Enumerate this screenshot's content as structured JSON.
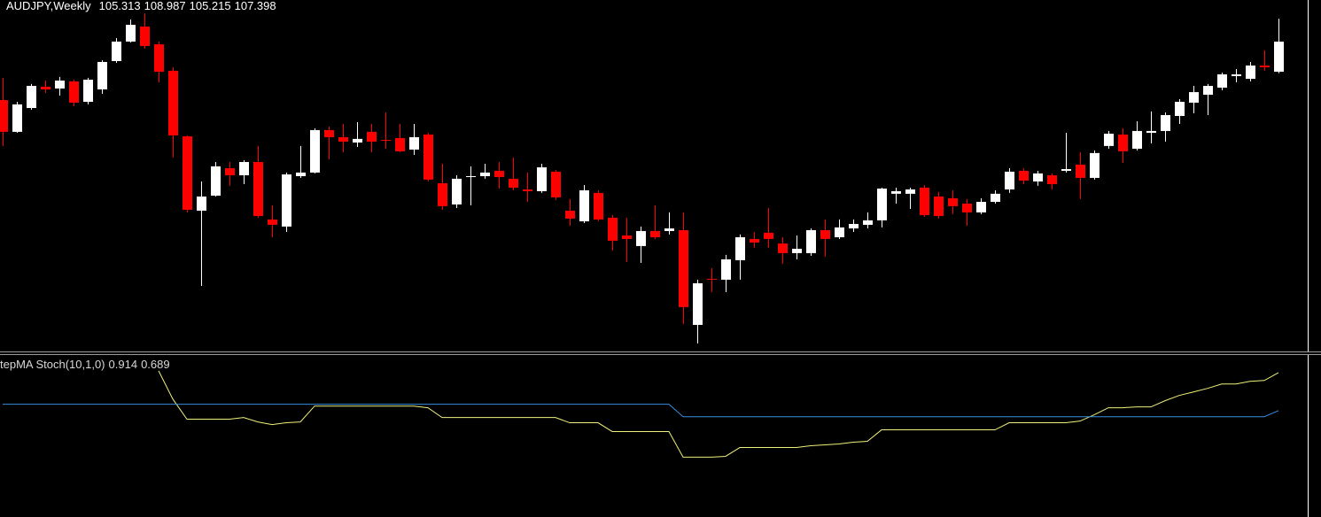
{
  "chart_data": [
    {
      "type": "candlestick",
      "title": "AUDJPY,Weekly",
      "bull_color": "#ffffff",
      "bear_color": "#ff0000",
      "ylim": [
        85.94,
        110.28
      ],
      "open": [
        103.35,
        101.15,
        102.8,
        104.27,
        104.15,
        104.64,
        103.23,
        104.09,
        106.05,
        107.4,
        108.44,
        107.21,
        105.38,
        100.84,
        95.69,
        96.73,
        98.63,
        98.14,
        99.06,
        95.08,
        94.59,
        98.08,
        98.33,
        101.27,
        100.78,
        100.41,
        101.15,
        100.59,
        100.72,
        99.92,
        100.96,
        97.59,
        96.12,
        98.02,
        98.08,
        98.45,
        97.9,
        97.16,
        97.04,
        98.39,
        95.69,
        94.95,
        96.92,
        95.2,
        93.97,
        93.24,
        94.28,
        94.28,
        94.34,
        87.78,
        90.97,
        90.91,
        92.26,
        93.73,
        94.16,
        93.42,
        92.75,
        92.75,
        94.34,
        93.85,
        94.46,
        94.71,
        95.02,
        96.86,
        96.86,
        97.28,
        96.67,
        96.55,
        96.18,
        95.57,
        96.3,
        97.16,
        98.45,
        97.71,
        98.14,
        98.45,
        98.88,
        97.96,
        100.17,
        100.96,
        99.98,
        101.08,
        101.21,
        102.25,
        103.17,
        103.72,
        104.21,
        105.01,
        104.82,
        105.74,
        105.313
      ],
      "high": [
        104.89,
        103.23,
        104.46,
        104.7,
        104.95,
        104.76,
        104.89,
        106.11,
        107.64,
        108.93,
        109.36,
        107.4,
        105.62,
        100.9,
        97.71,
        99.06,
        99.06,
        99.18,
        100.17,
        96.06,
        98.33,
        100.17,
        101.39,
        101.51,
        101.7,
        101.82,
        101.7,
        102.49,
        101.7,
        101.7,
        101.08,
        98.94,
        98.14,
        98.76,
        98.94,
        99.06,
        99.37,
        98.33,
        98.94,
        98.51,
        96.49,
        97.47,
        97.1,
        95.38,
        95.2,
        94.59,
        96.06,
        95.57,
        95.57,
        90.91,
        91.71,
        92.63,
        94.04,
        94.22,
        95.87,
        93.85,
        93.97,
        94.46,
        95.08,
        95.08,
        95.08,
        95.57,
        97.28,
        97.28,
        97.28,
        97.47,
        96.98,
        97.1,
        96.49,
        96.55,
        97.1,
        98.63,
        98.63,
        98.45,
        98.27,
        101.08,
        99.74,
        99.86,
        101.21,
        101.39,
        101.88,
        102.56,
        102.49,
        103.41,
        104.33,
        104.46,
        105.25,
        105.5,
        105.99,
        106.79,
        108.987
      ],
      "low": [
        100.17,
        101.08,
        102.68,
        103.84,
        103.66,
        102.92,
        103.05,
        103.78,
        105.93,
        107.34,
        106.91,
        104.58,
        99.37,
        95.57,
        90.48,
        96.67,
        97.41,
        97.53,
        95.2,
        93.85,
        94.22,
        97.96,
        98.27,
        99.25,
        99.74,
        100.1,
        99.74,
        99.98,
        99.74,
        99.55,
        97.71,
        95.75,
        95.87,
        96.06,
        97.9,
        97.22,
        97.1,
        96.3,
        96.92,
        96.43,
        94.65,
        94.83,
        94.95,
        92.93,
        92.14,
        92.07,
        93.73,
        94.04,
        87.84,
        86.5,
        90.05,
        90.05,
        90.91,
        93.12,
        93.12,
        92.01,
        92.32,
        92.56,
        92.5,
        93.73,
        94.22,
        94.46,
        94.53,
        96.18,
        95.81,
        95.26,
        95.14,
        95.45,
        94.65,
        95.45,
        96.18,
        96.92,
        97.53,
        97.41,
        97.16,
        98.33,
        96.49,
        97.84,
        99.98,
        99.0,
        99.86,
        100.35,
        100.47,
        101.7,
        102.43,
        102.31,
        104.03,
        104.58,
        104.64,
        105.38,
        105.215
      ],
      "close": [
        101.15,
        103.05,
        104.33,
        104.09,
        104.7,
        103.17,
        104.76,
        105.99,
        107.4,
        108.56,
        107.09,
        105.31,
        100.9,
        95.75,
        96.67,
        98.76,
        98.14,
        99.06,
        95.32,
        94.71,
        98.2,
        98.33,
        101.27,
        100.78,
        100.47,
        100.66,
        100.47,
        100.53,
        99.8,
        100.78,
        97.84,
        96.0,
        97.9,
        98.08,
        98.33,
        98.02,
        97.28,
        97.04,
        98.69,
        96.61,
        95.14,
        97.1,
        95.08,
        93.61,
        93.73,
        94.28,
        93.85,
        94.46,
        89.01,
        90.66,
        90.91,
        92.32,
        93.85,
        93.48,
        93.73,
        92.75,
        93.05,
        94.34,
        93.73,
        94.53,
        94.77,
        95.02,
        97.22,
        97.04,
        97.16,
        95.38,
        95.32,
        96.0,
        95.57,
        96.3,
        96.86,
        98.39,
        97.77,
        98.27,
        97.53,
        98.57,
        97.96,
        99.68,
        101.02,
        99.8,
        101.21,
        101.21,
        102.31,
        103.23,
        103.9,
        104.33,
        105.13,
        105.13,
        105.74,
        105.62,
        107.398
      ]
    },
    {
      "type": "line",
      "title": "tepMA Stoch(10,1,0)",
      "ylim": [
        0.058,
        1.019
      ],
      "series": [
        {
          "color": "#f0f07a",
          "values": [
            null,
            null,
            null,
            null,
            null,
            null,
            null,
            null,
            null,
            null,
            null,
            0.925,
            0.758,
            0.638,
            0.638,
            0.638,
            0.638,
            0.648,
            0.622,
            0.606,
            0.617,
            0.622,
            0.716,
            0.716,
            0.716,
            0.716,
            0.716,
            0.716,
            0.716,
            0.716,
            0.706,
            0.648,
            0.648,
            0.648,
            0.648,
            0.648,
            0.648,
            0.648,
            0.648,
            0.648,
            0.617,
            0.617,
            0.617,
            0.565,
            0.565,
            0.565,
            0.565,
            0.565,
            0.413,
            0.413,
            0.413,
            0.418,
            0.47,
            0.47,
            0.47,
            0.47,
            0.47,
            0.481,
            0.486,
            0.491,
            0.502,
            0.507,
            0.575,
            0.575,
            0.575,
            0.575,
            0.575,
            0.575,
            0.575,
            0.575,
            0.575,
            0.617,
            0.617,
            0.617,
            0.617,
            0.617,
            0.627,
            0.664,
            0.706,
            0.706,
            0.711,
            0.711,
            0.748,
            0.779,
            0.8,
            0.821,
            0.847,
            0.847,
            0.863,
            0.868,
            0.914
          ]
        },
        {
          "color": "#3a8ee0",
          "values": [
            0.727,
            0.727,
            0.727,
            0.727,
            0.727,
            0.727,
            0.727,
            0.727,
            0.727,
            0.727,
            0.727,
            0.727,
            0.727,
            0.727,
            0.727,
            0.727,
            0.727,
            0.727,
            0.727,
            0.727,
            0.727,
            0.727,
            0.727,
            0.727,
            0.727,
            0.727,
            0.727,
            0.727,
            0.727,
            0.727,
            0.727,
            0.727,
            0.727,
            0.727,
            0.727,
            0.727,
            0.727,
            0.727,
            0.727,
            0.727,
            0.727,
            0.727,
            0.727,
            0.727,
            0.727,
            0.727,
            0.727,
            0.727,
            0.653,
            0.653,
            0.653,
            0.653,
            0.653,
            0.653,
            0.653,
            0.653,
            0.653,
            0.653,
            0.653,
            0.653,
            0.653,
            0.653,
            0.653,
            0.653,
            0.653,
            0.653,
            0.653,
            0.653,
            0.653,
            0.653,
            0.653,
            0.653,
            0.653,
            0.653,
            0.653,
            0.653,
            0.653,
            0.653,
            0.653,
            0.653,
            0.653,
            0.653,
            0.653,
            0.653,
            0.653,
            0.653,
            0.653,
            0.653,
            0.653,
            0.653,
            0.689
          ]
        }
      ]
    }
  ]
}
